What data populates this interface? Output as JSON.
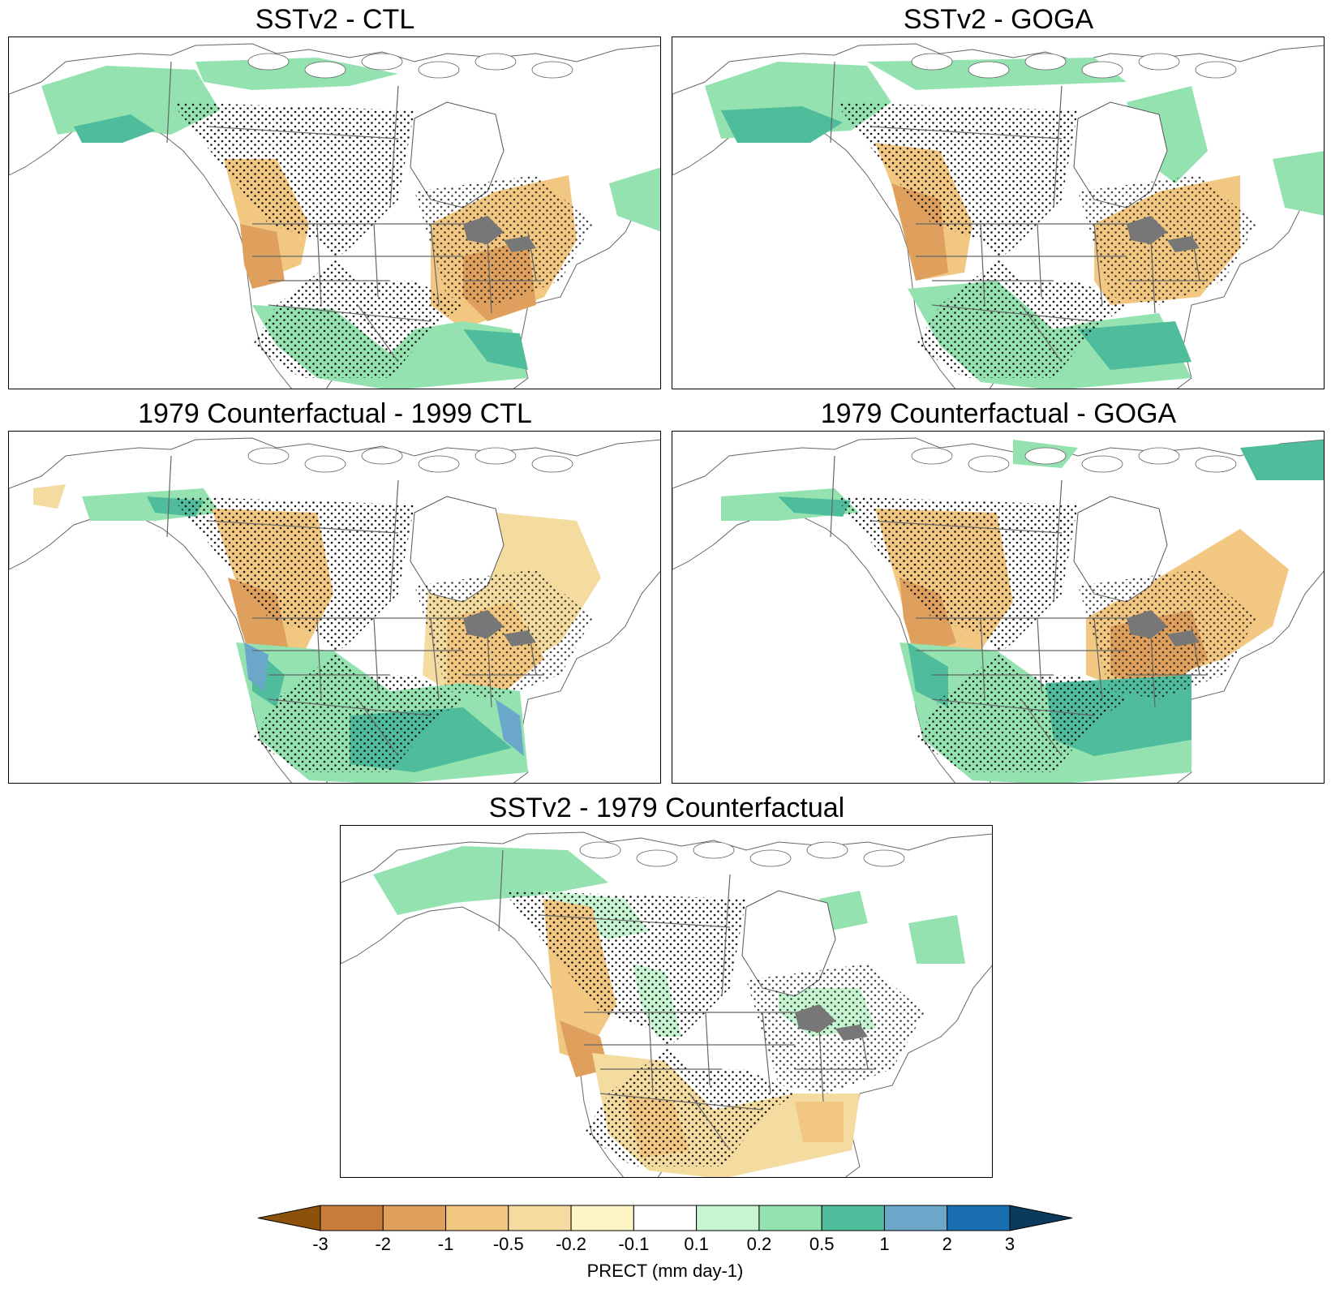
{
  "figure": {
    "panels": [
      {
        "id": "p1",
        "title": "SSTv2 - CTL"
      },
      {
        "id": "p2",
        "title": "SSTv2 - GOGA"
      },
      {
        "id": "p3",
        "title": "1979 Counterfactual - 1999 CTL"
      },
      {
        "id": "p4",
        "title": "1979 Counterfactual - GOGA"
      },
      {
        "id": "p5",
        "title": "SSTv2 - 1979 Counterfactual"
      }
    ],
    "colorbar": {
      "title": "PRECT (mm day-1)",
      "tick_labels": [
        "-3",
        "-2",
        "-1",
        "-0.5",
        "-0.2",
        "-0.1",
        "0.1",
        "0.2",
        "0.5",
        "1",
        "2",
        "3"
      ],
      "colors": [
        "#8c510a",
        "#c87d3a",
        "#dea05c",
        "#f2c781",
        "#f4dca0",
        "#fdf6c4",
        "#ffffff",
        "#c7f5d2",
        "#94e2b0",
        "#4fbd9b",
        "#6aa7c8",
        "#1a6fb0",
        "#0a3a5c"
      ]
    }
  }
}
